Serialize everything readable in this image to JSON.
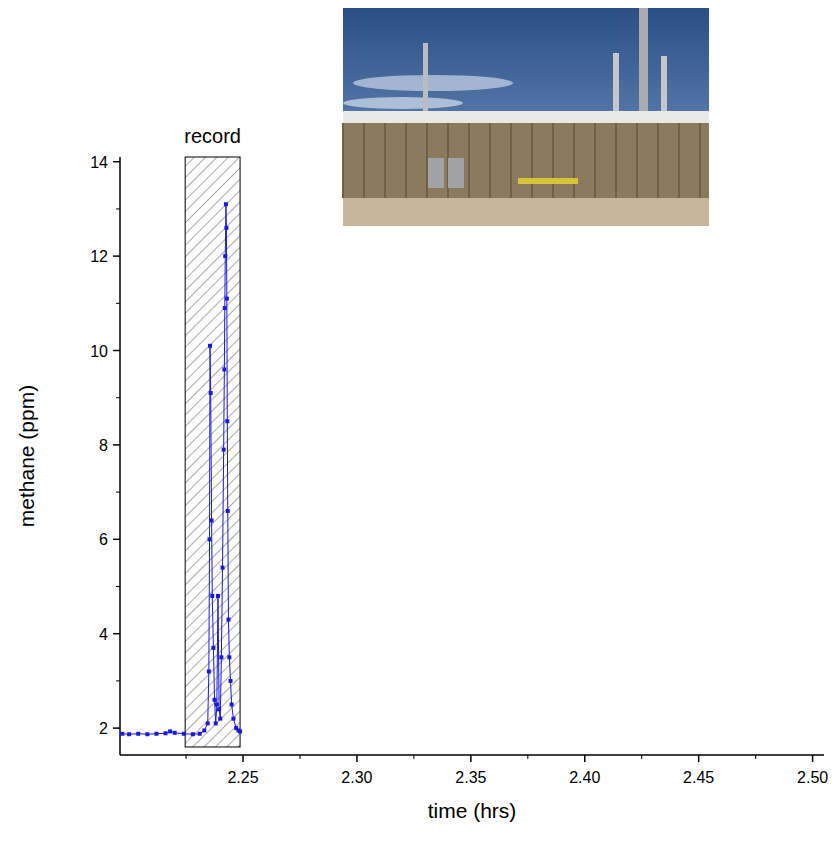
{
  "chart_data": {
    "type": "line",
    "x_label": "time (hrs)",
    "y_label": "methane (ppm)",
    "color": "#1a1adc",
    "marker": "square",
    "line_style": "solid",
    "grid": false,
    "x": [
      2.197,
      2.2,
      2.204,
      2.208,
      2.212,
      2.216,
      2.218,
      2.22,
      2.224,
      2.228,
      2.231,
      2.233,
      2.2345,
      2.235,
      2.2353,
      2.2355,
      2.2358,
      2.2362,
      2.2365,
      2.237,
      2.2375,
      2.238,
      2.2385,
      2.239,
      2.2395,
      2.24,
      2.2405,
      2.241,
      2.2415,
      2.2418,
      2.242,
      2.2422,
      2.2425,
      2.2427,
      2.2429,
      2.2431,
      2.2433,
      2.2436,
      2.244,
      2.2445,
      2.245,
      2.2458,
      2.247,
      2.248,
      2.2487
    ],
    "values": [
      1.88,
      1.87,
      1.88,
      1.87,
      1.88,
      1.89,
      1.93,
      1.9,
      1.88,
      1.87,
      1.88,
      1.95,
      2.1,
      3.2,
      6.0,
      10.1,
      9.1,
      6.4,
      4.8,
      3.7,
      2.6,
      2.1,
      2.5,
      4.8,
      2.4,
      2.2,
      3.5,
      5.4,
      7.9,
      9.6,
      10.9,
      12.0,
      13.1,
      12.6,
      11.1,
      8.5,
      6.6,
      4.3,
      3.5,
      3.0,
      2.5,
      2.2,
      2.0,
      1.95,
      1.93
    ],
    "xlim": [
      2.196,
      2.505
    ],
    "ylim": [
      1.43,
      14.1
    ],
    "xticks": [
      2.25,
      {
        "value": 2.3,
        "label": "2.30"
      },
      2.35,
      {
        "value": 2.4,
        "label": "2.40"
      },
      2.45,
      {
        "value": 2.5,
        "label": "2.50"
      }
    ],
    "yticks": [
      2,
      4,
      6,
      8,
      10,
      12,
      14
    ],
    "annotations": [
      {
        "text": "record",
        "x_range": [
          2.2246,
          2.2487
        ],
        "y_range": [
          1.6,
          14.1
        ]
      }
    ]
  }
}
